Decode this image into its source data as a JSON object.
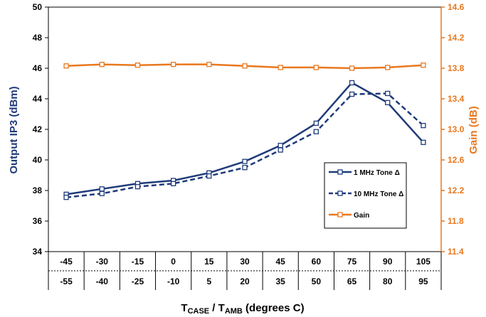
{
  "chart_data": {
    "type": "line",
    "title": "",
    "ylabel": "Output IP3 (dBm)",
    "y2label": "Gain (dB)",
    "xlabel": {
      "prefix": "T",
      "sub1": "CASE",
      "sep": " / T",
      "sub2": "AMB",
      "suffix": " (degrees C)"
    },
    "ylim": [
      34,
      50
    ],
    "yticks": [
      "34",
      "36",
      "38",
      "40",
      "42",
      "44",
      "46",
      "48",
      "50"
    ],
    "y2lim": [
      11.4,
      14.6
    ],
    "y2ticks": [
      "11.4",
      "11.8",
      "12.2",
      "12.6",
      "13.0",
      "13.4",
      "13.8",
      "14.2",
      "14.6"
    ],
    "categories_case": [
      "-45",
      "-30",
      "-15",
      "0",
      "15",
      "30",
      "45",
      "60",
      "75",
      "90",
      "105"
    ],
    "categories_amb": [
      "-55",
      "-40",
      "-25",
      "-10",
      "5",
      "20",
      "35",
      "50",
      "65",
      "80",
      "95"
    ],
    "grid": false,
    "legend_position": "right",
    "series": [
      {
        "name": "1 MHz Tone Δ",
        "axis": "left",
        "color": "#1f3b7a",
        "dashed": false,
        "values": [
          37.75,
          38.1,
          38.45,
          38.65,
          39.15,
          39.9,
          40.95,
          42.4,
          45.05,
          43.75,
          41.15
        ]
      },
      {
        "name": "10 MHz Tone Δ",
        "axis": "left",
        "color": "#1f3b7a",
        "dashed": true,
        "values": [
          37.55,
          37.8,
          38.25,
          38.45,
          38.95,
          39.5,
          40.65,
          41.85,
          44.3,
          44.35,
          42.25
        ]
      },
      {
        "name": "Gain",
        "axis": "right",
        "color": "#e8781e",
        "dashed": false,
        "values": [
          13.83,
          13.85,
          13.84,
          13.85,
          13.85,
          13.83,
          13.81,
          13.81,
          13.8,
          13.81,
          13.84
        ]
      }
    ]
  },
  "colors": {
    "left_axis": "#1f3b7a",
    "right_axis": "#e8781e"
  }
}
